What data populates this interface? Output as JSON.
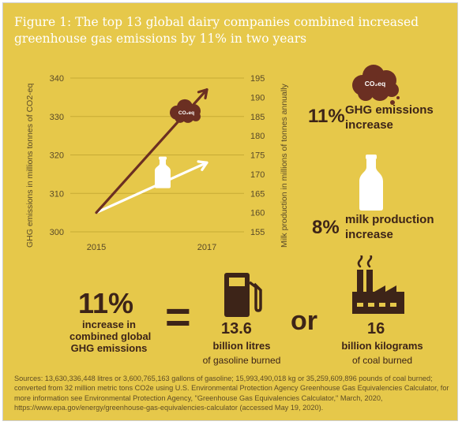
{
  "title": "Figure 1: The top 13 global dairy companies combined increased greenhouse gas emissions by 11% in two years",
  "colors": {
    "background": "#e6c84a",
    "ghg_line": "#6b2f22",
    "milk_line": "#ffffff",
    "text": "#3d2418"
  },
  "chart_data": {
    "type": "line",
    "x": [
      "2015",
      "2017"
    ],
    "grid": true,
    "y_left": {
      "label": "GHG emissions in millions tonnes of CO2-eq",
      "ticks": [
        300,
        310,
        320,
        330,
        340
      ],
      "ylim": [
        300,
        340
      ]
    },
    "y_right": {
      "label": "Milk production in millions of tonnes annually",
      "ticks": [
        155,
        160,
        165,
        170,
        175,
        180,
        185,
        190,
        195
      ],
      "ylim": [
        155,
        195
      ]
    },
    "series": [
      {
        "axis": "left",
        "values": [
          305,
          337
        ],
        "icon": "co2-cloud-icon",
        "icon_text": "CO₂eq"
      },
      {
        "axis": "right",
        "values": [
          160,
          173
        ],
        "icon": "milk-bottle-icon"
      }
    ]
  },
  "callouts": [
    {
      "percent": "11%",
      "line1": "GHG emissions",
      "line2": "increase",
      "icon": "co2-cloud-icon",
      "icon_text": "CO₂eq"
    },
    {
      "percent": "8%",
      "line1": "milk production",
      "line2": "increase",
      "icon": "milk-bottle-icon"
    }
  ],
  "equivalence": {
    "big": "11%",
    "desc_lines": [
      "increase in",
      "combined global",
      "GHG emissions"
    ],
    "equals": "=",
    "or": "or",
    "gasoline": {
      "value": "13.6",
      "unit": "billion litres",
      "sub": "of gasoline burned",
      "icon": "gas-pump-icon"
    },
    "coal": {
      "value": "16",
      "unit": "billion kilograms",
      "sub": "of coal burned",
      "icon": "factory-icon"
    }
  },
  "sources": "Sources: 13,630,336,448 litres or 3,600,765,163 gallons of gasoline; 15,993,490,018 kg or 35,259,609,896 pounds of coal burned; converted from 32 million metric tons CO2e using U.S. Environmental Protection Agency Greenhouse Gas Equivalencies Calculator, for more information see Environmental Protection Agency, \"Greenhouse Gas Equivalencies Calculator,\" March, 2020, https://www.epa.gov/energy/greenhouse-gas-equivalencies-calculator (accessed May 19, 2020)."
}
